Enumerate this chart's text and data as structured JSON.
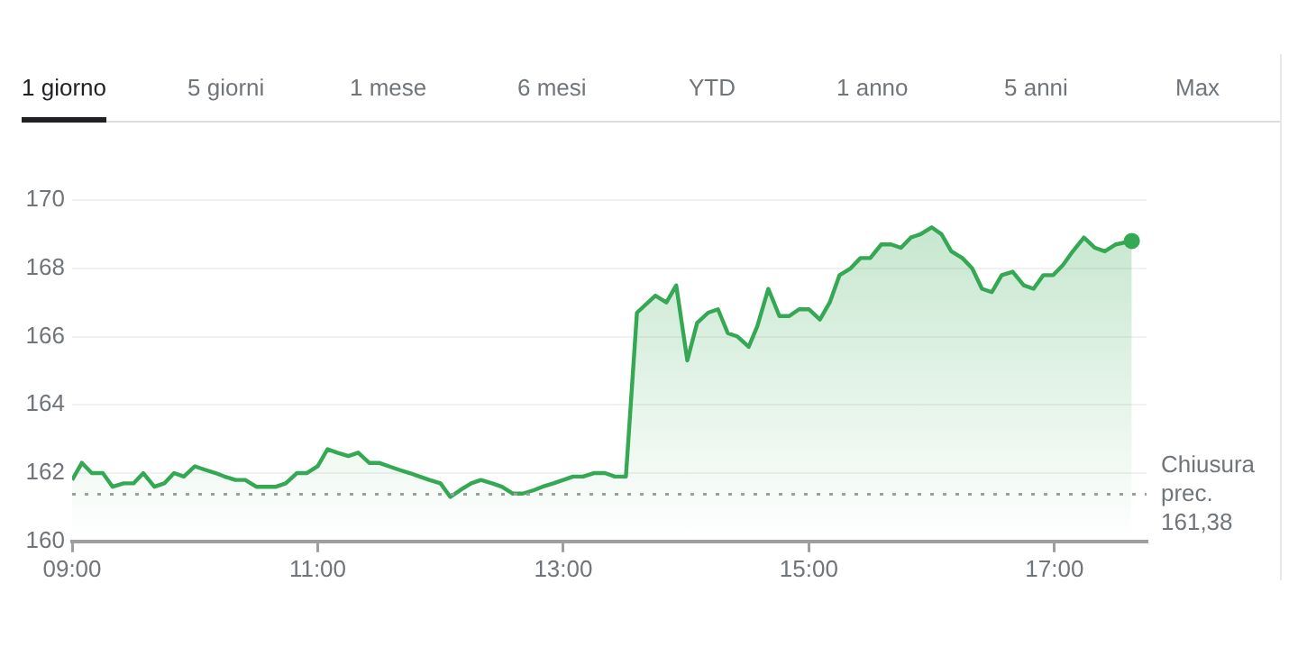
{
  "chart_data": {
    "type": "area",
    "annotations": [
      "1 giorno",
      "5 giorni",
      "1 mese",
      "6 mesi",
      "YTD",
      "1 anno",
      "5 anni",
      "Max"
    ],
    "x": [
      9.0,
      9.08,
      9.16,
      9.25,
      9.33,
      9.42,
      9.5,
      9.58,
      9.67,
      9.75,
      9.83,
      9.91,
      10.0,
      10.08,
      10.17,
      10.24,
      10.33,
      10.41,
      10.5,
      10.66,
      10.74,
      10.83,
      10.91,
      11.0,
      11.08,
      11.16,
      11.25,
      11.33,
      11.42,
      11.5,
      11.58,
      11.66,
      11.75,
      11.83,
      11.91,
      12.0,
      12.08,
      12.16,
      12.25,
      12.33,
      12.42,
      12.5,
      12.59,
      12.67,
      12.76,
      12.83,
      12.92,
      13.0,
      13.08,
      13.16,
      13.25,
      13.34,
      13.42,
      13.51,
      13.6,
      13.75,
      13.84,
      13.92,
      14.01,
      14.09,
      14.18,
      14.26,
      14.34,
      14.42,
      14.51,
      14.58,
      14.67,
      14.76,
      14.84,
      14.92,
      15.0,
      15.09,
      15.17,
      15.25,
      15.34,
      15.42,
      15.5,
      15.59,
      15.67,
      15.75,
      15.83,
      15.91,
      16.0,
      16.08,
      16.16,
      16.25,
      16.33,
      16.41,
      16.49,
      16.57,
      16.66,
      16.75,
      16.83,
      16.91,
      16.99,
      17.07,
      17.15,
      17.24,
      17.33,
      17.41,
      17.5,
      17.63
    ],
    "series": [
      {
        "color": "#34a853",
        "values": [
          161.8,
          162.3,
          162.0,
          162.0,
          161.6,
          161.7,
          161.7,
          162.0,
          161.6,
          161.7,
          162.0,
          161.9,
          162.2,
          162.1,
          162.0,
          161.9,
          161.8,
          161.8,
          161.6,
          161.6,
          161.7,
          162.0,
          162.0,
          162.2,
          162.7,
          162.6,
          162.5,
          162.6,
          162.3,
          162.3,
          162.2,
          162.1,
          162.0,
          161.9,
          161.8,
          161.7,
          161.3,
          161.5,
          161.7,
          161.8,
          161.7,
          161.6,
          161.4,
          161.4,
          161.5,
          161.6,
          161.7,
          161.8,
          161.9,
          161.9,
          162.0,
          162.0,
          161.9,
          161.9,
          166.7,
          167.2,
          167.0,
          167.5,
          165.3,
          166.4,
          166.7,
          166.8,
          166.1,
          166.0,
          165.7,
          166.3,
          167.4,
          166.6,
          166.6,
          166.8,
          166.8,
          166.5,
          167.0,
          167.8,
          168.0,
          168.3,
          168.3,
          168.7,
          168.7,
          168.6,
          168.9,
          169.0,
          169.2,
          169.0,
          168.5,
          168.3,
          168.0,
          167.4,
          167.3,
          167.8,
          167.9,
          167.5,
          167.4,
          167.8,
          167.8,
          168.1,
          168.5,
          168.9,
          168.6,
          168.5,
          168.7,
          168.8
        ]
      }
    ],
    "xlim": [
      9,
      17.75
    ],
    "xticks": [
      {
        "value": 9,
        "label": "09:00"
      },
      {
        "value": 11,
        "label": "11:00"
      },
      {
        "value": 13,
        "label": "13:00"
      },
      {
        "value": 15,
        "label": "15:00"
      },
      {
        "value": 17,
        "label": "17:00"
      }
    ],
    "ylim": [
      160,
      170
    ],
    "yticks": [
      160,
      162,
      164,
      166,
      168,
      170
    ],
    "grid": "y",
    "legend": false,
    "marker": "none",
    "line_style": "solid",
    "ref_lines": [
      {
        "axis": "y",
        "value": 161.38,
        "label": "Chiusura prec. 161,38",
        "color": "#9e9e9e",
        "line_style": "dotted"
      }
    ]
  }
}
